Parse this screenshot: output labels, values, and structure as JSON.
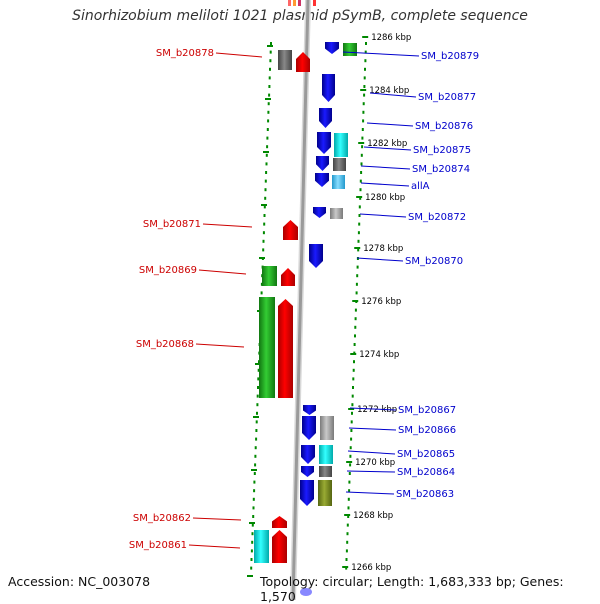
{
  "title": "Sinorhizobium meliloti 1021 plasmid pSymB, complete sequence",
  "footer": {
    "accession": "Accession: NC_003078",
    "topology": "Topology: circular; Length: 1,683,333 bp; Genes: 1,570"
  },
  "colors": {
    "forward_label": "#cc0000",
    "reverse_label": "#0000cc",
    "forward_cds": "#ff0000",
    "reverse_cds": "#0000ee",
    "ruler": "#008800",
    "backbone": "#9a9a9a"
  },
  "axis": {
    "unit": "kbp",
    "ticks": [
      {
        "label": "1286 kbp",
        "kbp": 1286
      },
      {
        "label": "1284 kbp",
        "kbp": 1284
      },
      {
        "label": "1282 kbp",
        "kbp": 1282
      },
      {
        "label": "1280 kbp",
        "kbp": 1280
      },
      {
        "label": "1278 kbp",
        "kbp": 1278
      },
      {
        "label": "1276 kbp",
        "kbp": 1276
      },
      {
        "label": "1274 kbp",
        "kbp": 1274
      },
      {
        "label": "1272 kbp",
        "kbp": 1272
      },
      {
        "label": "1270 kbp",
        "kbp": 1270
      },
      {
        "label": "1268 kbp",
        "kbp": 1268
      },
      {
        "label": "1266 kbp",
        "kbp": 1266
      }
    ]
  },
  "forward_labels": [
    "SM_b20878",
    "SM_b20871",
    "SM_b20869",
    "SM_b20868",
    "SM_b20862",
    "SM_b20861"
  ],
  "reverse_labels": [
    "SM_b20879",
    "SM_b20877",
    "SM_b20876",
    "SM_b20875",
    "SM_b20874",
    "allA",
    "SM_b20872",
    "SM_b20870",
    "SM_b20867",
    "SM_b20866",
    "SM_b20865",
    "SM_b20864",
    "SM_b20863"
  ]
}
